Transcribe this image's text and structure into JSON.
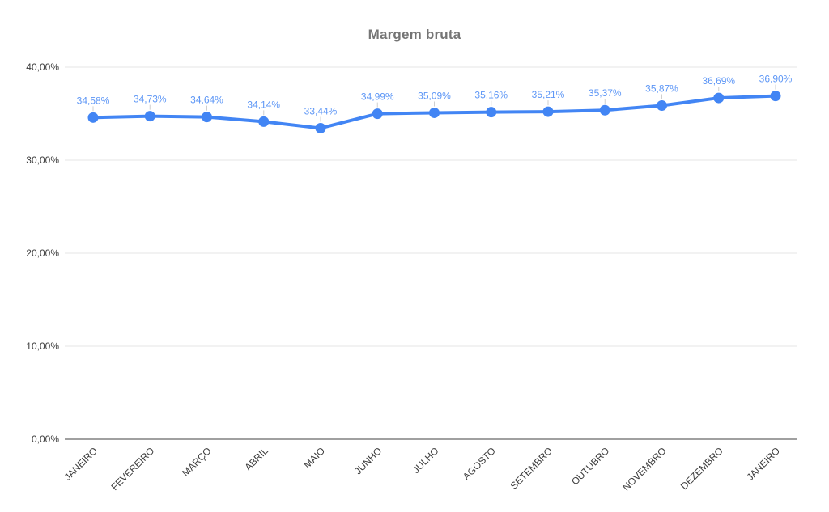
{
  "chart_data": {
    "type": "line",
    "title": "Margem bruta",
    "categories": [
      "JANEIRO",
      "FEVEREIRO",
      "MARÇO",
      "ABRIL",
      "MAIO",
      "JUNHO",
      "JULHO",
      "AGOSTO",
      "SETEMBRO",
      "OUTUBRO",
      "NOVEMBRO",
      "DEZEMBRO",
      "JANEIRO"
    ],
    "series": [
      {
        "name": "Margem bruta",
        "values": [
          34.58,
          34.73,
          34.64,
          34.14,
          33.44,
          34.99,
          35.09,
          35.16,
          35.21,
          35.37,
          35.87,
          36.69,
          36.9
        ]
      }
    ],
    "data_labels": [
      "34,58%",
      "34,73%",
      "34,64%",
      "34,14%",
      "33,44%",
      "34,99%",
      "35,09%",
      "35,16%",
      "35,21%",
      "35,37%",
      "35,87%",
      "36,69%",
      "36,90%"
    ],
    "y_ticks": [
      0,
      10,
      20,
      30,
      40
    ],
    "y_tick_labels": [
      "0,00%",
      "10,00%",
      "20,00%",
      "30,00%",
      "40,00%"
    ],
    "ylim": [
      0,
      40
    ],
    "xlabel": "",
    "ylabel": "",
    "grid": true,
    "legend": "none",
    "colors": {
      "series": "#4285f4",
      "data_label": "#5e97f6",
      "gridline": "#e6e6e6",
      "axis_line": "#424242",
      "tick_label": "#3c3c3c",
      "label_stem": "#cfcfcf",
      "title": "#757575",
      "background": "#ffffff"
    }
  }
}
